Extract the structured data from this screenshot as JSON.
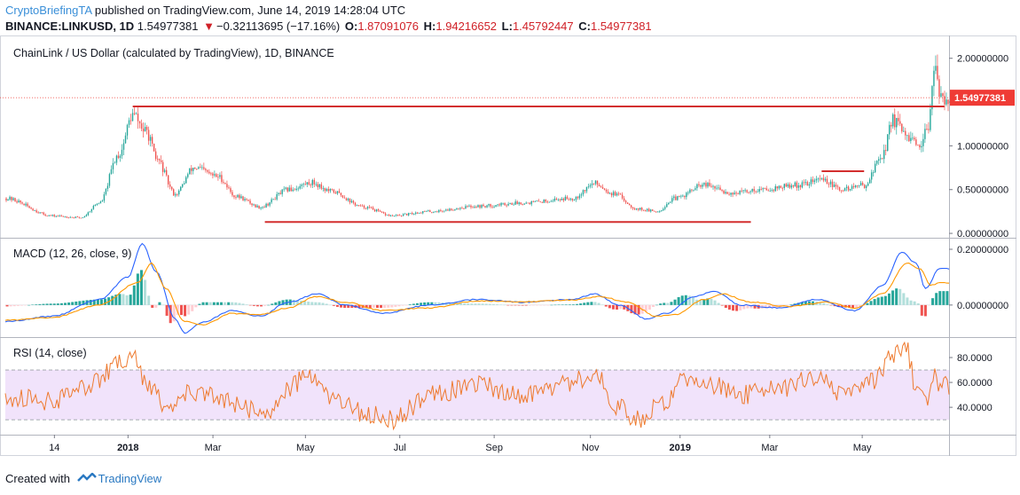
{
  "header": {
    "author": "CryptoBriefingTA",
    "published": " published on TradingView.com, June 14, 2019 14:28:04 UTC",
    "symbol": "BINANCE:LINKUSD, 1D",
    "last_price": "1.54977381",
    "change_arrow": "▼",
    "change": "−0.32113695 (−17.16%)",
    "o_label": "O:",
    "o_value": "1.87091076",
    "h_label": "H:",
    "h_value": "1.94216652",
    "l_label": "L:",
    "l_value": "1.45792447",
    "c_label": "C:",
    "c_value": "1.54977381"
  },
  "colors": {
    "up": "#26a69a",
    "down": "#ef5350",
    "macd_line": "#2962ff",
    "signal_line": "#ff9800",
    "rsi_line": "#ee7a2f",
    "rsi_band": "#f1e3fb",
    "annotation": "#d32f2f",
    "price_tag": "#ef3b35"
  },
  "chart_data": [
    {
      "type": "candlestick",
      "title": "ChainLink / US Dollar (calculated by TradingView), 1D, BINANCE",
      "y_ticks": [
        "2.00000000",
        "1.50000000",
        "1.00000000",
        "0.50000000",
        "0.00000000"
      ],
      "y_tick_values": [
        2.0,
        1.5,
        1.0,
        0.5,
        0.0
      ],
      "ylim": [
        -0.05,
        2.22
      ],
      "x_ticks": [
        "14",
        "2018",
        "Mar",
        "May",
        "Jul",
        "Sep",
        "Nov",
        "2019",
        "Mar",
        "May"
      ],
      "last_price_label": "1.54977381",
      "last_price": 1.5498,
      "anchors": [
        [
          0,
          0.4
        ],
        [
          0.05,
          0.2
        ],
        [
          0.08,
          0.18
        ],
        [
          0.1,
          0.35
        ],
        [
          0.12,
          0.9
        ],
        [
          0.135,
          1.35
        ],
        [
          0.15,
          1.15
        ],
        [
          0.16,
          0.85
        ],
        [
          0.18,
          0.45
        ],
        [
          0.2,
          0.75
        ],
        [
          0.225,
          0.65
        ],
        [
          0.245,
          0.42
        ],
        [
          0.27,
          0.3
        ],
        [
          0.3,
          0.5
        ],
        [
          0.325,
          0.58
        ],
        [
          0.345,
          0.48
        ],
        [
          0.38,
          0.3
        ],
        [
          0.41,
          0.2
        ],
        [
          0.45,
          0.25
        ],
        [
          0.5,
          0.31
        ],
        [
          0.55,
          0.35
        ],
        [
          0.6,
          0.4
        ],
        [
          0.625,
          0.57
        ],
        [
          0.645,
          0.45
        ],
        [
          0.67,
          0.28
        ],
        [
          0.69,
          0.25
        ],
        [
          0.71,
          0.4
        ],
        [
          0.74,
          0.55
        ],
        [
          0.77,
          0.46
        ],
        [
          0.8,
          0.5
        ],
        [
          0.84,
          0.55
        ],
        [
          0.865,
          0.62
        ],
        [
          0.885,
          0.5
        ],
        [
          0.91,
          0.55
        ],
        [
          0.93,
          0.9
        ],
        [
          0.94,
          1.3
        ],
        [
          0.955,
          1.1
        ],
        [
          0.97,
          0.95
        ],
        [
          0.978,
          1.25
        ],
        [
          0.984,
          1.92
        ],
        [
          0.99,
          1.55
        ]
      ],
      "annotations": [
        {
          "kind": "horizontal-line",
          "value": 1.45,
          "from": 0.135,
          "to": 0.995
        },
        {
          "kind": "horizontal-line",
          "value": 0.13,
          "from": 0.275,
          "to": 0.79
        },
        {
          "kind": "horizontal-line",
          "value": 0.71,
          "from": 0.865,
          "to": 0.91
        }
      ]
    },
    {
      "type": "line",
      "title": "MACD (12, 26, close, 9)",
      "y_ticks": [
        "0.20000000",
        "0.00000000"
      ],
      "y_tick_values": [
        0.2,
        0.0
      ],
      "ylim": [
        -0.115,
        0.235
      ],
      "series": [
        {
          "name": "MACD",
          "anchors": [
            [
              0,
              -0.06
            ],
            [
              0.05,
              -0.04
            ],
            [
              0.1,
              0.02
            ],
            [
              0.13,
              0.1
            ],
            [
              0.145,
              0.22
            ],
            [
              0.16,
              0.12
            ],
            [
              0.18,
              -0.05
            ],
            [
              0.19,
              -0.1
            ],
            [
              0.21,
              -0.06
            ],
            [
              0.24,
              -0.02
            ],
            [
              0.27,
              -0.04
            ],
            [
              0.3,
              0.01
            ],
            [
              0.33,
              0.04
            ],
            [
              0.36,
              0.0
            ],
            [
              0.4,
              -0.03
            ],
            [
              0.45,
              0.0
            ],
            [
              0.5,
              0.02
            ],
            [
              0.55,
              0.01
            ],
            [
              0.6,
              0.02
            ],
            [
              0.625,
              0.04
            ],
            [
              0.65,
              0.0
            ],
            [
              0.68,
              -0.05
            ],
            [
              0.7,
              -0.03
            ],
            [
              0.73,
              0.03
            ],
            [
              0.75,
              0.05
            ],
            [
              0.78,
              0.0
            ],
            [
              0.82,
              -0.01
            ],
            [
              0.86,
              0.02
            ],
            [
              0.9,
              -0.02
            ],
            [
              0.93,
              0.07
            ],
            [
              0.95,
              0.19
            ],
            [
              0.965,
              0.15
            ],
            [
              0.975,
              0.06
            ],
            [
              0.99,
              0.13
            ]
          ]
        },
        {
          "name": "Signal",
          "anchors": [
            [
              0,
              -0.055
            ],
            [
              0.05,
              -0.045
            ],
            [
              0.1,
              0.0
            ],
            [
              0.14,
              0.08
            ],
            [
              0.155,
              0.15
            ],
            [
              0.17,
              0.06
            ],
            [
              0.19,
              -0.06
            ],
            [
              0.21,
              -0.07
            ],
            [
              0.24,
              -0.03
            ],
            [
              0.27,
              -0.035
            ],
            [
              0.3,
              -0.01
            ],
            [
              0.33,
              0.03
            ],
            [
              0.36,
              0.01
            ],
            [
              0.4,
              -0.02
            ],
            [
              0.45,
              -0.01
            ],
            [
              0.5,
              0.015
            ],
            [
              0.55,
              0.012
            ],
            [
              0.6,
              0.018
            ],
            [
              0.63,
              0.03
            ],
            [
              0.66,
              0.01
            ],
            [
              0.69,
              -0.04
            ],
            [
              0.71,
              -0.035
            ],
            [
              0.74,
              0.02
            ],
            [
              0.76,
              0.04
            ],
            [
              0.79,
              0.01
            ],
            [
              0.83,
              -0.005
            ],
            [
              0.87,
              0.01
            ],
            [
              0.9,
              -0.01
            ],
            [
              0.93,
              0.04
            ],
            [
              0.955,
              0.15
            ],
            [
              0.97,
              0.13
            ],
            [
              0.98,
              0.07
            ],
            [
              0.99,
              0.08
            ]
          ]
        }
      ]
    },
    {
      "type": "line",
      "title": "RSI (14, close)",
      "y_ticks": [
        "80.0000",
        "60.0000",
        "40.0000"
      ],
      "y_tick_values": [
        80,
        60,
        40
      ],
      "ylim": [
        18,
        95
      ],
      "band": [
        30,
        70
      ],
      "series": [
        {
          "name": "RSI",
          "anchors": [
            [
              0,
              48
            ],
            [
              0.05,
              45
            ],
            [
              0.09,
              58
            ],
            [
              0.12,
              75
            ],
            [
              0.135,
              82
            ],
            [
              0.15,
              60
            ],
            [
              0.17,
              42
            ],
            [
              0.2,
              52
            ],
            [
              0.23,
              47
            ],
            [
              0.26,
              38
            ],
            [
              0.28,
              35
            ],
            [
              0.3,
              55
            ],
            [
              0.32,
              65
            ],
            [
              0.35,
              45
            ],
            [
              0.38,
              35
            ],
            [
              0.41,
              30
            ],
            [
              0.45,
              50
            ],
            [
              0.5,
              58
            ],
            [
              0.55,
              50
            ],
            [
              0.6,
              60
            ],
            [
              0.625,
              68
            ],
            [
              0.65,
              40
            ],
            [
              0.67,
              30
            ],
            [
              0.7,
              45
            ],
            [
              0.72,
              62
            ],
            [
              0.75,
              58
            ],
            [
              0.78,
              50
            ],
            [
              0.82,
              55
            ],
            [
              0.86,
              65
            ],
            [
              0.89,
              50
            ],
            [
              0.92,
              60
            ],
            [
              0.94,
              80
            ],
            [
              0.955,
              88
            ],
            [
              0.965,
              55
            ],
            [
              0.975,
              45
            ],
            [
              0.985,
              70
            ],
            [
              0.99,
              58
            ]
          ]
        }
      ]
    }
  ],
  "footer": {
    "created_with": "Created with",
    "brand": "TradingView"
  }
}
